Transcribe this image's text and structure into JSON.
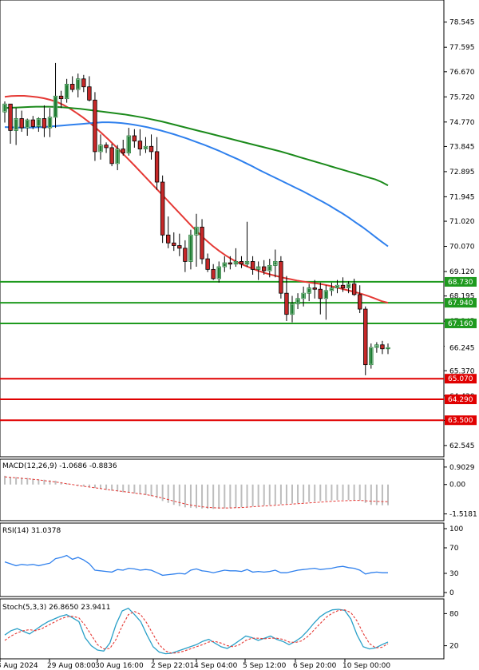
{
  "chart_data": {
    "type": "candlestick",
    "grid": false,
    "colors": {
      "bull_candle": "#1e7d32",
      "bear_candle": "#c62828",
      "ma_fast": "#e53935",
      "ma_mid": "#2f80ed",
      "ma_slow": "#1b8a1b",
      "resistance_line": "#1e9a1e",
      "support_line": "#e00000",
      "macd_signal": "#e53935",
      "macd_hist": "#bdbdbd",
      "rsi": "#2f80ed",
      "stoch_k": "#2aa0c8",
      "stoch_d": "#e53935"
    },
    "x_labels": [
      "28 Aug 2024",
      "29 Aug 08:00",
      "30 Aug 16:00",
      "2 Sep 22:01",
      "4 Sep 04:00",
      "5 Sep 12:00",
      "6 Sep 20:00",
      "10 Sep 00:00"
    ],
    "price_axis": {
      "ylim": [
        62.3,
        79.2
      ],
      "ticks": [
        "78.545",
        "77.595",
        "76.670",
        "75.720",
        "74.770",
        "73.845",
        "72.895",
        "71.945",
        "71.020",
        "70.070",
        "69.120",
        "68.195",
        "67.245",
        "66.295",
        "65.370",
        "64.420",
        "63.495",
        "62.545"
      ]
    },
    "levels": [
      {
        "label": "68.730",
        "value": 68.73,
        "kind": "resistance"
      },
      {
        "label": "67.940",
        "value": 67.94,
        "kind": "resistance"
      },
      {
        "label": "67.160",
        "value": 67.16,
        "kind": "resistance"
      },
      {
        "label": "65.070",
        "value": 65.07,
        "kind": "support"
      },
      {
        "label": "64.290",
        "value": 64.29,
        "kind": "support"
      },
      {
        "label": "63.500",
        "value": 63.5,
        "kind": "support"
      }
    ],
    "last_price": {
      "label": "66.245",
      "value": 66.245
    },
    "candles": [
      [
        75.15,
        75.55,
        74.75,
        75.45
      ],
      [
        75.45,
        75.45,
        73.95,
        74.45
      ],
      [
        74.45,
        75.3,
        73.9,
        74.9
      ],
      [
        74.9,
        75.2,
        74.4,
        74.55
      ],
      [
        74.55,
        74.9,
        74.25,
        74.85
      ],
      [
        74.85,
        75.0,
        74.5,
        74.6
      ],
      [
        74.6,
        74.95,
        74.4,
        74.9
      ],
      [
        74.9,
        75.4,
        74.2,
        74.55
      ],
      [
        74.55,
        75.3,
        74.2,
        74.95
      ],
      [
        74.95,
        77.0,
        74.55,
        75.75
      ],
      [
        75.75,
        75.95,
        75.3,
        75.65
      ],
      [
        75.65,
        76.4,
        75.5,
        76.2
      ],
      [
        76.2,
        76.5,
        75.9,
        76.0
      ],
      [
        76.0,
        76.6,
        75.7,
        76.4
      ],
      [
        76.4,
        76.55,
        75.9,
        76.1
      ],
      [
        76.1,
        76.5,
        75.55,
        75.6
      ],
      [
        75.6,
        75.9,
        73.3,
        73.65
      ],
      [
        73.65,
        74.3,
        73.35,
        73.9
      ],
      [
        73.9,
        74.0,
        73.6,
        73.8
      ],
      [
        73.8,
        73.95,
        73.1,
        73.2
      ],
      [
        73.2,
        73.9,
        72.95,
        73.75
      ],
      [
        73.75,
        74.1,
        73.5,
        73.6
      ],
      [
        73.6,
        74.55,
        73.5,
        74.25
      ],
      [
        74.25,
        74.5,
        73.8,
        74.05
      ],
      [
        74.05,
        74.5,
        73.5,
        73.75
      ],
      [
        73.75,
        74.2,
        73.6,
        73.85
      ],
      [
        73.85,
        74.3,
        73.35,
        73.65
      ],
      [
        73.65,
        74.2,
        72.2,
        72.5
      ],
      [
        72.5,
        72.75,
        70.2,
        70.5
      ],
      [
        70.5,
        71.2,
        70.0,
        70.2
      ],
      [
        70.2,
        70.6,
        69.9,
        70.1
      ],
      [
        70.1,
        70.55,
        69.7,
        70.0
      ],
      [
        70.0,
        70.3,
        69.1,
        69.5
      ],
      [
        69.5,
        70.7,
        69.2,
        70.5
      ],
      [
        70.5,
        71.3,
        69.3,
        70.8
      ],
      [
        70.8,
        71.1,
        69.4,
        69.6
      ],
      [
        69.6,
        69.8,
        69.1,
        69.2
      ],
      [
        69.2,
        69.4,
        68.8,
        68.85
      ],
      [
        68.85,
        69.5,
        68.7,
        69.3
      ],
      [
        69.3,
        69.7,
        69.1,
        69.45
      ],
      [
        69.45,
        69.7,
        69.2,
        69.4
      ],
      [
        69.4,
        70.0,
        69.3,
        69.5
      ],
      [
        69.5,
        69.7,
        69.25,
        69.4
      ],
      [
        69.4,
        71.0,
        69.3,
        69.5
      ],
      [
        69.5,
        69.7,
        69.0,
        69.2
      ],
      [
        69.2,
        69.5,
        68.8,
        69.3
      ],
      [
        69.3,
        69.55,
        69.0,
        69.15
      ],
      [
        69.15,
        69.6,
        68.9,
        69.35
      ],
      [
        69.35,
        69.95,
        68.9,
        69.5
      ],
      [
        69.5,
        69.7,
        68.1,
        68.3
      ],
      [
        68.3,
        68.95,
        67.25,
        67.5
      ],
      [
        67.5,
        68.2,
        67.2,
        67.9
      ],
      [
        67.9,
        68.3,
        67.7,
        68.1
      ],
      [
        68.1,
        68.55,
        67.8,
        68.3
      ],
      [
        68.3,
        68.65,
        68.0,
        68.5
      ],
      [
        68.5,
        68.8,
        68.1,
        68.45
      ],
      [
        68.45,
        68.7,
        67.5,
        68.1
      ],
      [
        68.1,
        68.6,
        67.3,
        68.4
      ],
      [
        68.4,
        68.7,
        68.2,
        68.5
      ],
      [
        68.5,
        68.8,
        68.3,
        68.6
      ],
      [
        68.6,
        68.9,
        68.35,
        68.5
      ],
      [
        68.5,
        68.75,
        68.3,
        68.65
      ],
      [
        68.65,
        68.85,
        68.2,
        68.25
      ],
      [
        68.25,
        68.6,
        67.55,
        67.7
      ],
      [
        67.7,
        67.8,
        65.2,
        65.6
      ],
      [
        65.6,
        66.4,
        65.45,
        66.25
      ],
      [
        66.25,
        66.45,
        66.05,
        66.35
      ],
      [
        66.35,
        66.5,
        66.0,
        66.2
      ],
      [
        66.2,
        66.4,
        66.0,
        66.245
      ]
    ],
    "moving_averages": [
      {
        "key": "ma_fast",
        "values": [
          75.72,
          75.75,
          75.76,
          75.76,
          75.74,
          75.71,
          75.67,
          75.61,
          75.53,
          75.42,
          75.28,
          75.12,
          74.95,
          74.76,
          74.55,
          74.33,
          74.1,
          73.86,
          73.62,
          73.37,
          73.12,
          72.86,
          72.6,
          72.34,
          72.08,
          71.82,
          71.56,
          71.3,
          71.04,
          70.78,
          70.53,
          70.3,
          70.09,
          69.9,
          69.73,
          69.58,
          69.45,
          69.34,
          69.24,
          69.15,
          69.07,
          69.0,
          68.94,
          68.88,
          68.83,
          68.78,
          68.74,
          68.7,
          68.67,
          68.63,
          68.58,
          68.52,
          68.46,
          68.4,
          68.34,
          68.27,
          68.19,
          68.1,
          68.0,
          67.94
        ]
      },
      {
        "key": "ma_mid",
        "values": [
          74.58,
          74.57,
          74.56,
          74.56,
          74.56,
          74.57,
          74.58,
          74.6,
          74.62,
          74.64,
          74.66,
          74.68,
          74.7,
          74.72,
          74.74,
          74.76,
          74.76,
          74.75,
          74.73,
          74.7,
          74.66,
          74.62,
          74.57,
          74.51,
          74.45,
          74.38,
          74.31,
          74.23,
          74.15,
          74.06,
          73.97,
          73.88,
          73.78,
          73.68,
          73.57,
          73.46,
          73.35,
          73.23,
          73.11,
          72.98,
          72.86,
          72.74,
          72.62,
          72.5,
          72.38,
          72.26,
          72.14,
          72.01,
          71.88,
          71.75,
          71.61,
          71.46,
          71.31,
          71.15,
          70.98,
          70.81,
          70.63,
          70.44,
          70.25,
          70.07
        ]
      },
      {
        "key": "ma_slow",
        "values": [
          75.3,
          75.31,
          75.32,
          75.33,
          75.34,
          75.35,
          75.35,
          75.35,
          75.34,
          75.33,
          75.31,
          75.29,
          75.27,
          75.24,
          75.21,
          75.18,
          75.15,
          75.12,
          75.09,
          75.06,
          75.02,
          74.98,
          74.94,
          74.89,
          74.84,
          74.79,
          74.73,
          74.67,
          74.61,
          74.55,
          74.49,
          74.43,
          74.37,
          74.31,
          74.25,
          74.19,
          74.13,
          74.07,
          74.01,
          73.95,
          73.89,
          73.83,
          73.77,
          73.71,
          73.65,
          73.58,
          73.51,
          73.44,
          73.37,
          73.3,
          73.23,
          73.16,
          73.09,
          73.02,
          72.95,
          72.88,
          72.81,
          72.74,
          72.67,
          72.6,
          72.5,
          72.37
        ]
      }
    ],
    "macd": {
      "label": "MACD(12,26,9) -1.0686 -0.8836",
      "ylim": [
        -1.62,
        0.98
      ],
      "ticks": [
        "0.9029",
        "0.00",
        "-1.5181"
      ],
      "hist": [
        0.45,
        0.4,
        0.38,
        0.36,
        0.34,
        0.3,
        0.27,
        0.25,
        0.22,
        0.2,
        0.12,
        0.05,
        0.0,
        -0.05,
        -0.1,
        -0.13,
        -0.18,
        -0.22,
        -0.28,
        -0.32,
        -0.36,
        -0.4,
        -0.42,
        -0.46,
        -0.5,
        -0.55,
        -0.6,
        -0.7,
        -0.85,
        -0.95,
        -1.05,
        -1.12,
        -1.18,
        -1.2,
        -1.22,
        -1.24,
        -1.25,
        -1.26,
        -1.25,
        -1.23,
        -1.21,
        -1.19,
        -1.17,
        -1.15,
        -1.13,
        -1.1,
        -1.08,
        -1.06,
        -1.04,
        -1.02,
        -1.0,
        -0.98,
        -0.96,
        -0.94,
        -0.9,
        -0.88,
        -0.86,
        -0.84,
        -0.82,
        -0.8,
        -0.8,
        -0.8,
        -0.81,
        -0.82,
        -0.95,
        -1.05,
        -1.06,
        -1.07,
        -1.0686
      ],
      "signal": [
        0.4,
        0.37,
        0.35,
        0.32,
        0.3,
        0.27,
        0.24,
        0.2,
        0.17,
        0.13,
        0.09,
        0.04,
        0.0,
        -0.05,
        -0.09,
        -0.13,
        -0.17,
        -0.21,
        -0.25,
        -0.29,
        -0.33,
        -0.36,
        -0.4,
        -0.44,
        -0.48,
        -0.52,
        -0.57,
        -0.63,
        -0.7,
        -0.78,
        -0.86,
        -0.93,
        -1.0,
        -1.06,
        -1.11,
        -1.15,
        -1.18,
        -1.2,
        -1.21,
        -1.21,
        -1.21,
        -1.2,
        -1.19,
        -1.17,
        -1.15,
        -1.13,
        -1.11,
        -1.09,
        -1.07,
        -1.05,
        -1.03,
        -1.01,
        -0.99,
        -0.97,
        -0.95,
        -0.93,
        -0.91,
        -0.89,
        -0.87,
        -0.85,
        -0.84,
        -0.83,
        -0.82,
        -0.82,
        -0.84,
        -0.86,
        -0.87,
        -0.88,
        -0.8836
      ]
    },
    "rsi": {
      "label": "RSI(14) 31.0378",
      "ylim": [
        0,
        100
      ],
      "ticks": [
        "100",
        "70",
        "30",
        "0"
      ],
      "values": [
        48,
        45,
        42,
        44,
        43,
        44,
        42,
        44,
        46,
        53,
        55,
        58,
        52,
        55,
        51,
        45,
        35,
        34,
        33,
        32,
        36,
        35,
        38,
        37,
        35,
        36,
        35,
        31,
        27,
        28,
        29,
        30,
        29,
        35,
        37,
        34,
        33,
        31,
        33,
        35,
        34,
        34,
        33,
        36,
        32,
        33,
        32,
        33,
        35,
        31,
        31,
        33,
        35,
        36,
        37,
        38,
        36,
        37,
        38,
        40,
        41,
        39,
        38,
        35,
        29,
        31,
        32,
        31,
        31.0378
      ]
    },
    "stoch": {
      "label": "Stoch(5,3,3) 26.8650 23.9411",
      "ylim": [
        0,
        100
      ],
      "ticks": [
        "80",
        "20"
      ],
      "k": [
        40,
        48,
        52,
        47,
        42,
        50,
        58,
        65,
        70,
        75,
        78,
        72,
        65,
        35,
        20,
        12,
        10,
        25,
        60,
        85,
        90,
        78,
        65,
        40,
        18,
        8,
        5,
        6,
        10,
        14,
        18,
        22,
        28,
        32,
        25,
        18,
        15,
        22,
        30,
        38,
        35,
        30,
        34,
        38,
        32,
        28,
        22,
        28,
        36,
        48,
        62,
        74,
        82,
        87,
        88,
        86,
        70,
        40,
        18,
        14,
        16,
        22,
        26.865
      ],
      "d": [
        30,
        38,
        44,
        48,
        50,
        48,
        52,
        58,
        64,
        70,
        74,
        75,
        72,
        58,
        40,
        22,
        14,
        15,
        32,
        57,
        78,
        84,
        78,
        62,
        41,
        22,
        10,
        6,
        7,
        10,
        14,
        18,
        22,
        27,
        28,
        25,
        20,
        18,
        22,
        30,
        34,
        34,
        33,
        34,
        34,
        32,
        27,
        26,
        29,
        37,
        49,
        61,
        73,
        81,
        86,
        87,
        82,
        66,
        43,
        24,
        16,
        17,
        23.9411
      ]
    }
  }
}
